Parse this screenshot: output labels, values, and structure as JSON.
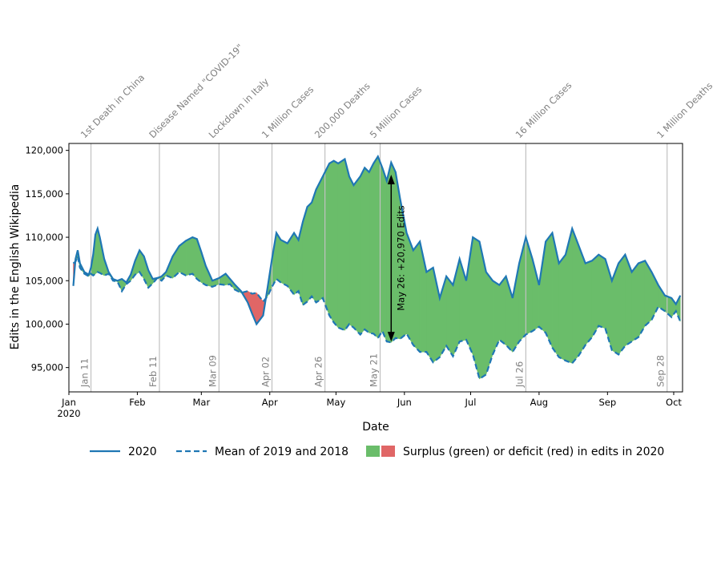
{
  "chart_data": {
    "type": "line",
    "xlabel": "Date",
    "ylabel": "Edits in the English Wikipedia",
    "xlim": [
      "2020-01-01",
      "2020-10-05"
    ],
    "ylim": [
      92200,
      120800
    ],
    "grid": false,
    "legend_position": "bottom",
    "x_tick_labels": [
      {
        "date": "2020-01-01",
        "label": "Jan",
        "sublabel": "2020"
      },
      {
        "date": "2020-02-01",
        "label": "Feb"
      },
      {
        "date": "2020-03-01",
        "label": "Mar"
      },
      {
        "date": "2020-04-01",
        "label": "Apr"
      },
      {
        "date": "2020-05-01",
        "label": "May"
      },
      {
        "date": "2020-06-01",
        "label": "Jun"
      },
      {
        "date": "2020-07-01",
        "label": "Jul"
      },
      {
        "date": "2020-08-01",
        "label": "Aug"
      },
      {
        "date": "2020-09-01",
        "label": "Sep"
      },
      {
        "date": "2020-10-01",
        "label": "Oct"
      }
    ],
    "y_ticks": [
      {
        "value": 95000,
        "label": "95,000"
      },
      {
        "value": 100000,
        "label": "100,000"
      },
      {
        "value": 105000,
        "label": "105,000"
      },
      {
        "value": 110000,
        "label": "110,000"
      },
      {
        "value": 115000,
        "label": "115,000"
      },
      {
        "value": 120000,
        "label": "120,000"
      }
    ],
    "events": [
      {
        "date": "2020-01-11",
        "date_label": "Jan 11",
        "label": "1st Death in China"
      },
      {
        "date": "2020-02-11",
        "date_label": "Feb 11",
        "label": "Disease Named \"COVID-19\""
      },
      {
        "date": "2020-03-09",
        "date_label": "Mar 09",
        "label": "Lockdown in Italy"
      },
      {
        "date": "2020-04-02",
        "date_label": "Apr 02",
        "label": "1 Million Cases"
      },
      {
        "date": "2020-04-26",
        "date_label": "Apr 26",
        "label": "200,000 Deaths"
      },
      {
        "date": "2020-05-21",
        "date_label": "May 21",
        "label": "5 Million Cases"
      },
      {
        "date": "2020-07-26",
        "date_label": "Jul 26",
        "label": "16 Million Cases"
      },
      {
        "date": "2020-09-28",
        "date_label": "Sep 28",
        "label": "1 Million Deaths"
      }
    ],
    "annotation": {
      "date": "2020-05-26",
      "y_low": 98000,
      "y_high": 117200,
      "text": "May 26: +20,970 Edits"
    },
    "colors": {
      "line": "#1f77b4",
      "surplus": "#6abd6a",
      "deficit": "#e06666",
      "event_line": "#c0c0c0",
      "event_text": "#808080"
    },
    "legend": [
      {
        "label": "2020",
        "style": "solid"
      },
      {
        "label": "Mean of 2019 and 2018",
        "style": "dashed"
      },
      {
        "label": "Surplus (green) or deficit (red) in edits in 2020",
        "style": "fill"
      }
    ],
    "series": [
      {
        "name": "2020",
        "style": "solid",
        "points": [
          [
            "2020-01-03",
            104400
          ],
          [
            "2020-01-04",
            107500
          ],
          [
            "2020-01-05",
            108500
          ],
          [
            "2020-01-06",
            107000
          ],
          [
            "2020-01-08",
            106000
          ],
          [
            "2020-01-10",
            105700
          ],
          [
            "2020-01-11",
            106500
          ],
          [
            "2020-01-12",
            108000
          ],
          [
            "2020-01-13",
            110300
          ],
          [
            "2020-01-14",
            111000
          ],
          [
            "2020-01-15",
            110000
          ],
          [
            "2020-01-17",
            107500
          ],
          [
            "2020-01-19",
            106000
          ],
          [
            "2020-01-21",
            105200
          ],
          [
            "2020-01-23",
            105000
          ],
          [
            "2020-01-25",
            105200
          ],
          [
            "2020-01-27",
            104800
          ],
          [
            "2020-01-29",
            105700
          ],
          [
            "2020-01-31",
            107300
          ],
          [
            "2020-02-02",
            108500
          ],
          [
            "2020-02-04",
            107800
          ],
          [
            "2020-02-06",
            106200
          ],
          [
            "2020-02-08",
            105200
          ],
          [
            "2020-02-10",
            105300
          ],
          [
            "2020-02-12",
            105500
          ],
          [
            "2020-02-14",
            106000
          ],
          [
            "2020-02-17",
            107800
          ],
          [
            "2020-02-20",
            109000
          ],
          [
            "2020-02-23",
            109600
          ],
          [
            "2020-02-26",
            110000
          ],
          [
            "2020-02-28",
            109800
          ],
          [
            "2020-03-01",
            108300
          ],
          [
            "2020-03-03",
            106700
          ],
          [
            "2020-03-06",
            105000
          ],
          [
            "2020-03-09",
            105300
          ],
          [
            "2020-03-12",
            105800
          ],
          [
            "2020-03-14",
            105200
          ],
          [
            "2020-03-16",
            104600
          ],
          [
            "2020-03-19",
            103800
          ],
          [
            "2020-03-22",
            102500
          ],
          [
            "2020-03-24",
            101200
          ],
          [
            "2020-03-26",
            100000
          ],
          [
            "2020-03-29",
            101000
          ],
          [
            "2020-03-31",
            104200
          ],
          [
            "2020-04-02",
            107500
          ],
          [
            "2020-04-04",
            110500
          ],
          [
            "2020-04-06",
            109700
          ],
          [
            "2020-04-09",
            109300
          ],
          [
            "2020-04-12",
            110500
          ],
          [
            "2020-04-14",
            109700
          ],
          [
            "2020-04-16",
            111800
          ],
          [
            "2020-04-18",
            113500
          ],
          [
            "2020-04-20",
            114000
          ],
          [
            "2020-04-22",
            115500
          ],
          [
            "2020-04-25",
            117000
          ],
          [
            "2020-04-28",
            118500
          ],
          [
            "2020-04-30",
            118800
          ],
          [
            "2020-05-02",
            118500
          ],
          [
            "2020-05-05",
            119000
          ],
          [
            "2020-05-07",
            117000
          ],
          [
            "2020-05-09",
            116000
          ],
          [
            "2020-05-12",
            117000
          ],
          [
            "2020-05-14",
            118000
          ],
          [
            "2020-05-16",
            117500
          ],
          [
            "2020-05-18",
            118500
          ],
          [
            "2020-05-20",
            119300
          ],
          [
            "2020-05-22",
            118000
          ],
          [
            "2020-05-24",
            116500
          ],
          [
            "2020-05-26",
            118600
          ],
          [
            "2020-05-28",
            117500
          ],
          [
            "2020-05-30",
            114500
          ],
          [
            "2020-06-02",
            110500
          ],
          [
            "2020-06-05",
            108500
          ],
          [
            "2020-06-08",
            109500
          ],
          [
            "2020-06-11",
            106000
          ],
          [
            "2020-06-14",
            106500
          ],
          [
            "2020-06-17",
            103000
          ],
          [
            "2020-06-20",
            105500
          ],
          [
            "2020-06-23",
            104500
          ],
          [
            "2020-06-26",
            107500
          ],
          [
            "2020-06-29",
            105000
          ],
          [
            "2020-07-02",
            110000
          ],
          [
            "2020-07-05",
            109500
          ],
          [
            "2020-07-08",
            106000
          ],
          [
            "2020-07-11",
            105000
          ],
          [
            "2020-07-14",
            104500
          ],
          [
            "2020-07-17",
            105500
          ],
          [
            "2020-07-20",
            103000
          ],
          [
            "2020-07-23",
            107000
          ],
          [
            "2020-07-26",
            110000
          ],
          [
            "2020-07-29",
            107500
          ],
          [
            "2020-08-01",
            104500
          ],
          [
            "2020-08-04",
            109500
          ],
          [
            "2020-08-07",
            110500
          ],
          [
            "2020-08-10",
            107000
          ],
          [
            "2020-08-13",
            108000
          ],
          [
            "2020-08-16",
            111000
          ],
          [
            "2020-08-19",
            109000
          ],
          [
            "2020-08-22",
            107000
          ],
          [
            "2020-08-25",
            107300
          ],
          [
            "2020-08-28",
            108000
          ],
          [
            "2020-08-31",
            107500
          ],
          [
            "2020-09-03",
            105000
          ],
          [
            "2020-09-06",
            107000
          ],
          [
            "2020-09-09",
            108000
          ],
          [
            "2020-09-12",
            106000
          ],
          [
            "2020-09-15",
            107000
          ],
          [
            "2020-09-18",
            107300
          ],
          [
            "2020-09-21",
            106000
          ],
          [
            "2020-09-24",
            104500
          ],
          [
            "2020-09-27",
            103300
          ],
          [
            "2020-09-30",
            103000
          ],
          [
            "2020-10-02",
            102300
          ],
          [
            "2020-10-04",
            103300
          ]
        ]
      },
      {
        "name": "Mean of 2019 and 2018",
        "style": "dashed",
        "points": [
          [
            "2020-01-03",
            107000
          ],
          [
            "2020-01-04",
            107200
          ],
          [
            "2020-01-05",
            107800
          ],
          [
            "2020-01-06",
            106500
          ],
          [
            "2020-01-08",
            105800
          ],
          [
            "2020-01-10",
            105500
          ],
          [
            "2020-01-11",
            105800
          ],
          [
            "2020-01-12",
            105600
          ],
          [
            "2020-01-13",
            105800
          ],
          [
            "2020-01-14",
            106000
          ],
          [
            "2020-01-15",
            105900
          ],
          [
            "2020-01-17",
            105600
          ],
          [
            "2020-01-19",
            105800
          ],
          [
            "2020-01-21",
            105000
          ],
          [
            "2020-01-23",
            104900
          ],
          [
            "2020-01-25",
            103800
          ],
          [
            "2020-01-27",
            104600
          ],
          [
            "2020-01-29",
            105000
          ],
          [
            "2020-01-31",
            105700
          ],
          [
            "2020-02-02",
            106000
          ],
          [
            "2020-02-04",
            105200
          ],
          [
            "2020-02-06",
            104200
          ],
          [
            "2020-02-08",
            104700
          ],
          [
            "2020-02-10",
            105300
          ],
          [
            "2020-02-12",
            105000
          ],
          [
            "2020-02-14",
            105600
          ],
          [
            "2020-02-17",
            105300
          ],
          [
            "2020-02-20",
            106000
          ],
          [
            "2020-02-23",
            105600
          ],
          [
            "2020-02-26",
            105800
          ],
          [
            "2020-02-28",
            105200
          ],
          [
            "2020-03-01",
            104800
          ],
          [
            "2020-03-03",
            104500
          ],
          [
            "2020-03-06",
            104300
          ],
          [
            "2020-03-09",
            104600
          ],
          [
            "2020-03-12",
            104500
          ],
          [
            "2020-03-14",
            104600
          ],
          [
            "2020-03-16",
            104000
          ],
          [
            "2020-03-19",
            103600
          ],
          [
            "2020-03-22",
            103800
          ],
          [
            "2020-03-24",
            103500
          ],
          [
            "2020-03-26",
            103600
          ],
          [
            "2020-03-29",
            102600
          ],
          [
            "2020-03-31",
            103200
          ],
          [
            "2020-04-02",
            104300
          ],
          [
            "2020-04-04",
            105200
          ],
          [
            "2020-04-06",
            104800
          ],
          [
            "2020-04-09",
            104400
          ],
          [
            "2020-04-12",
            103400
          ],
          [
            "2020-04-14",
            103800
          ],
          [
            "2020-04-16",
            102200
          ],
          [
            "2020-04-18",
            102600
          ],
          [
            "2020-04-20",
            103200
          ],
          [
            "2020-04-22",
            102500
          ],
          [
            "2020-04-25",
            103000
          ],
          [
            "2020-04-28",
            101000
          ],
          [
            "2020-04-30",
            100200
          ],
          [
            "2020-05-02",
            99600
          ],
          [
            "2020-05-05",
            99300
          ],
          [
            "2020-05-07",
            100000
          ],
          [
            "2020-05-09",
            99600
          ],
          [
            "2020-05-12",
            98800
          ],
          [
            "2020-05-14",
            99400
          ],
          [
            "2020-05-16",
            99000
          ],
          [
            "2020-05-18",
            98900
          ],
          [
            "2020-05-20",
            98400
          ],
          [
            "2020-05-22",
            99200
          ],
          [
            "2020-05-24",
            98000
          ],
          [
            "2020-05-26",
            97900
          ],
          [
            "2020-05-28",
            98400
          ],
          [
            "2020-05-30",
            98300
          ],
          [
            "2020-06-02",
            98900
          ],
          [
            "2020-06-05",
            97600
          ],
          [
            "2020-06-08",
            96800
          ],
          [
            "2020-06-11",
            96800
          ],
          [
            "2020-06-14",
            95600
          ],
          [
            "2020-06-17",
            96200
          ],
          [
            "2020-06-20",
            97500
          ],
          [
            "2020-06-23",
            96300
          ],
          [
            "2020-06-26",
            98000
          ],
          [
            "2020-06-29",
            98200
          ],
          [
            "2020-07-02",
            96500
          ],
          [
            "2020-07-05",
            93700
          ],
          [
            "2020-07-08",
            94200
          ],
          [
            "2020-07-11",
            96500
          ],
          [
            "2020-07-14",
            98200
          ],
          [
            "2020-07-17",
            97600
          ],
          [
            "2020-07-20",
            96800
          ],
          [
            "2020-07-23",
            98000
          ],
          [
            "2020-07-26",
            98800
          ],
          [
            "2020-07-29",
            99200
          ],
          [
            "2020-08-01",
            99700
          ],
          [
            "2020-08-04",
            99000
          ],
          [
            "2020-08-07",
            97300
          ],
          [
            "2020-08-10",
            96200
          ],
          [
            "2020-08-13",
            95800
          ],
          [
            "2020-08-16",
            95500
          ],
          [
            "2020-08-19",
            96400
          ],
          [
            "2020-08-22",
            97600
          ],
          [
            "2020-08-25",
            98500
          ],
          [
            "2020-08-28",
            99800
          ],
          [
            "2020-08-31",
            99500
          ],
          [
            "2020-09-03",
            97000
          ],
          [
            "2020-09-06",
            96500
          ],
          [
            "2020-09-09",
            97500
          ],
          [
            "2020-09-12",
            98000
          ],
          [
            "2020-09-15",
            98500
          ],
          [
            "2020-09-18",
            99800
          ],
          [
            "2020-09-21",
            100500
          ],
          [
            "2020-09-24",
            102000
          ],
          [
            "2020-09-27",
            101500
          ],
          [
            "2020-09-30",
            100800
          ],
          [
            "2020-10-02",
            101500
          ],
          [
            "2020-10-04",
            100300
          ]
        ]
      }
    ]
  }
}
